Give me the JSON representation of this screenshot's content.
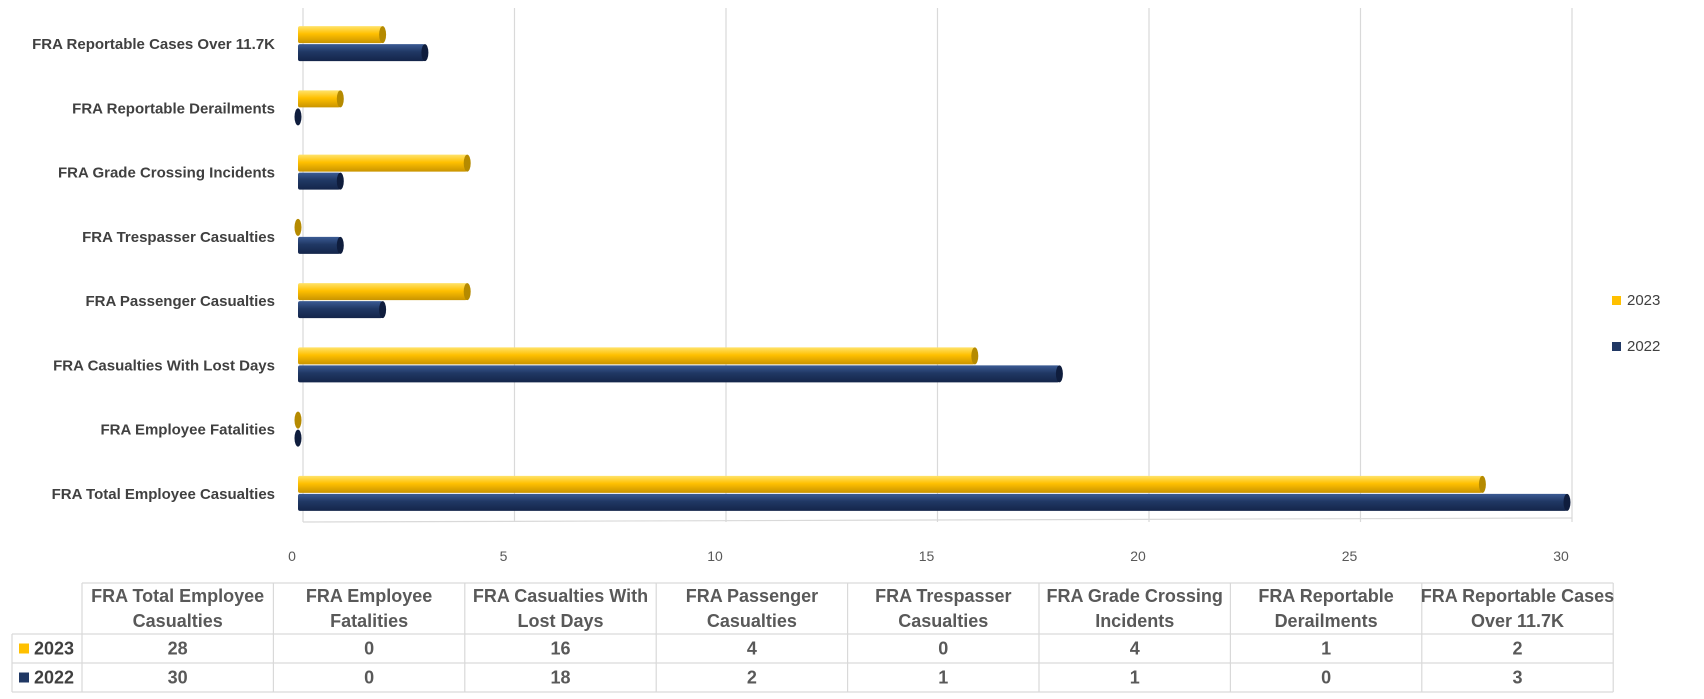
{
  "colors": {
    "series_2023": "#FFC000",
    "series_2022": "#203864",
    "grid": "#D9D9D9"
  },
  "chart_data": {
    "type": "bar",
    "orientation": "horizontal",
    "title": "",
    "xlabel": "",
    "ylabel": "",
    "xlim": [
      0,
      30
    ],
    "x_ticks": [
      0,
      5,
      10,
      15,
      20,
      25,
      30
    ],
    "grid": true,
    "legend_position": "right",
    "categories": [
      "FRA Total Employee Casualties",
      "FRA Employee Fatalities",
      "FRA Casualties With Lost Days",
      "FRA Passenger Casualties",
      "FRA Trespasser Casualties",
      "FRA Grade Crossing Incidents",
      "FRA Reportable Derailments",
      "FRA Reportable Cases Over 11.7K"
    ],
    "table_headers": [
      [
        "FRA Total Employee",
        "Casualties"
      ],
      [
        "FRA Employee",
        "Fatalities"
      ],
      [
        "FRA Casualties With",
        "Lost Days"
      ],
      [
        "FRA Passenger",
        "Casualties"
      ],
      [
        "FRA Trespasser",
        "Casualties"
      ],
      [
        "FRA Grade Crossing",
        "Incidents"
      ],
      [
        "FRA Reportable",
        "Derailments"
      ],
      [
        "FRA Reportable Cases",
        "Over 11.7K"
      ]
    ],
    "series": [
      {
        "name": "2023",
        "color": "#FFC000",
        "values": [
          28,
          0,
          16,
          4,
          0,
          4,
          1,
          2
        ]
      },
      {
        "name": "2022",
        "color": "#203864",
        "values": [
          30,
          0,
          18,
          2,
          1,
          1,
          0,
          3
        ]
      }
    ]
  }
}
